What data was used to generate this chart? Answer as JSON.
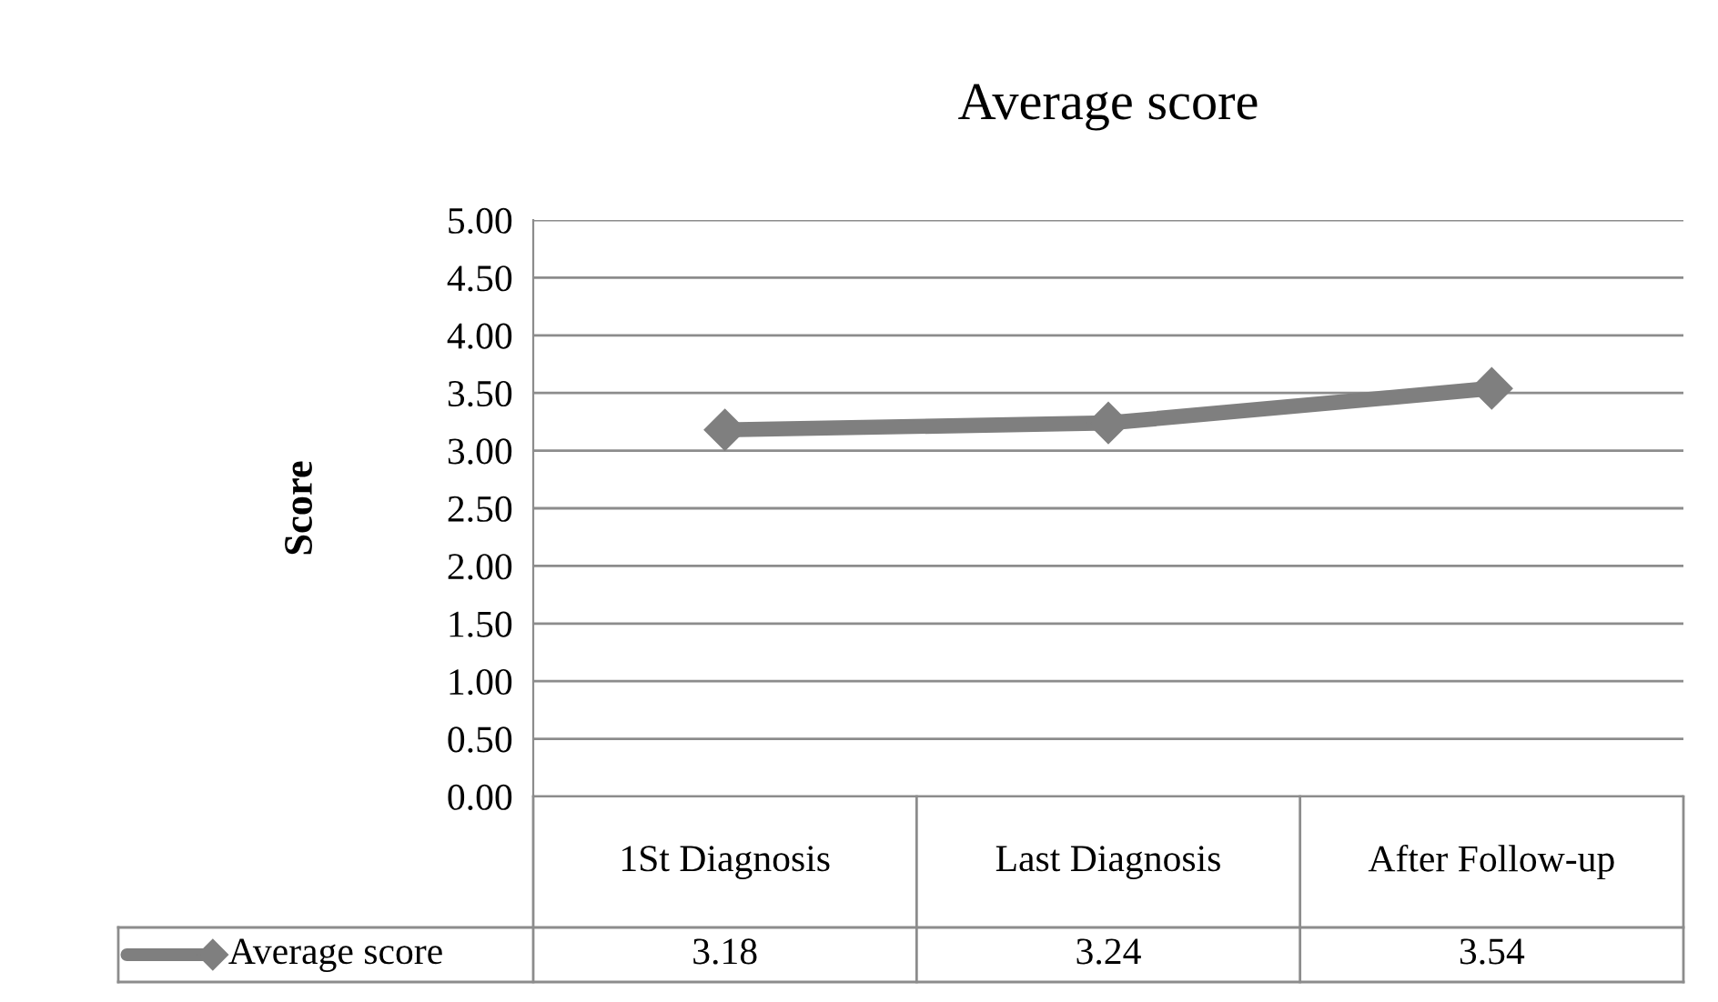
{
  "chart_data": {
    "type": "line",
    "title": "Average score",
    "ylabel": "Score",
    "categories": [
      "1St Diagnosis",
      "Last Diagnosis",
      "After Follow-up"
    ],
    "series": [
      {
        "name": "Average score",
        "color": "#7f7f7f",
        "values": [
          3.18,
          3.24,
          3.54
        ]
      }
    ],
    "ylim": [
      0,
      5
    ],
    "yticks": [
      {
        "value": 0,
        "label": "0.00"
      },
      {
        "value": 0.5,
        "label": "0.50"
      },
      {
        "value": 1,
        "label": "1.00"
      },
      {
        "value": 1.5,
        "label": "1.50"
      },
      {
        "value": 2,
        "label": "2.00"
      },
      {
        "value": 2.5,
        "label": "2.50"
      },
      {
        "value": 3,
        "label": "3.00"
      },
      {
        "value": 3.5,
        "label": "3.50"
      },
      {
        "value": 4,
        "label": "4.00"
      },
      {
        "value": 4.5,
        "label": "4.50"
      },
      {
        "value": 5,
        "label": "5.00"
      }
    ],
    "grid": "y",
    "marker": "diamond",
    "line_style": "solid",
    "data_labels": true
  }
}
